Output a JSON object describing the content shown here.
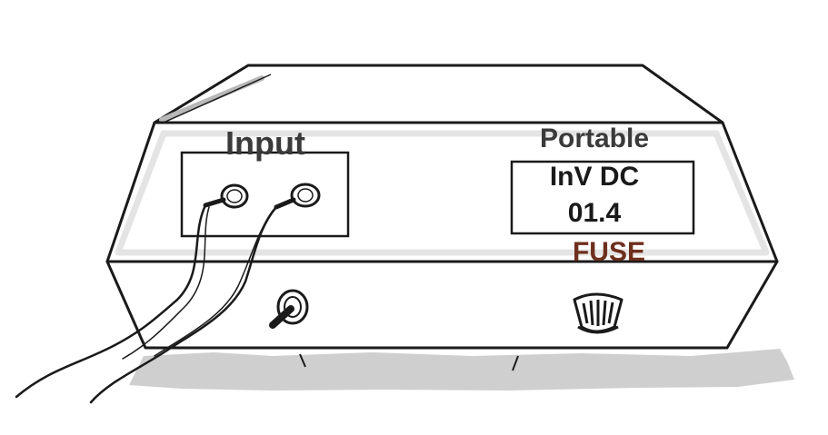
{
  "device": {
    "input_label": "Input",
    "display": {
      "title": "Portable",
      "line1": "InV DC",
      "line2": "01.4"
    },
    "fuse_label": "FUSE"
  },
  "colors": {
    "ink": "#1a1a1a",
    "label_dark": "#3a3a3a",
    "fuse_label": "#6e2f1c",
    "shadow": "#cfcfcf",
    "panel_highlight": "#e4e4e4"
  },
  "icons": {
    "input_jacks": "banana-plug-icon",
    "power_switch": "toggle-switch-icon",
    "fuse_holder": "fuse-holder-icon"
  }
}
